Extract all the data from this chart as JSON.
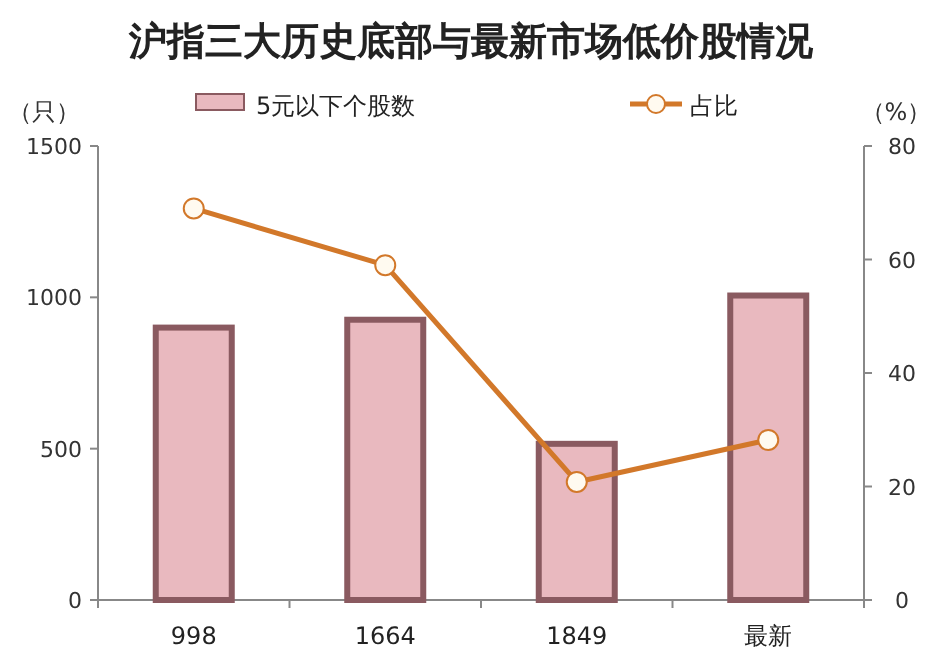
{
  "chart_data": {
    "type": "bar",
    "title": "沪指三大历史底部与最新市场低价股情况",
    "ylabel": "（只）",
    "y2label": "（%）",
    "categories": [
      "998",
      "1664",
      "1849",
      "最新"
    ],
    "series": [
      {
        "name": "5元以下个股数",
        "color": "#e9b9bf",
        "values": [
          900,
          926,
          516,
          1006
        ]
      },
      {
        "name": "占比",
        "type": "line",
        "axis": "y2",
        "color": "#d2782a",
        "marker": "circle",
        "values": [
          69,
          59,
          20.8,
          28.2
        ]
      }
    ],
    "ylim": [
      0,
      1500
    ],
    "yticks": [
      0,
      500,
      1000,
      1500
    ],
    "y2lim": [
      0,
      80
    ],
    "y2ticks": [
      0,
      20,
      40,
      60,
      80
    ],
    "legend": "top",
    "grid": false
  }
}
